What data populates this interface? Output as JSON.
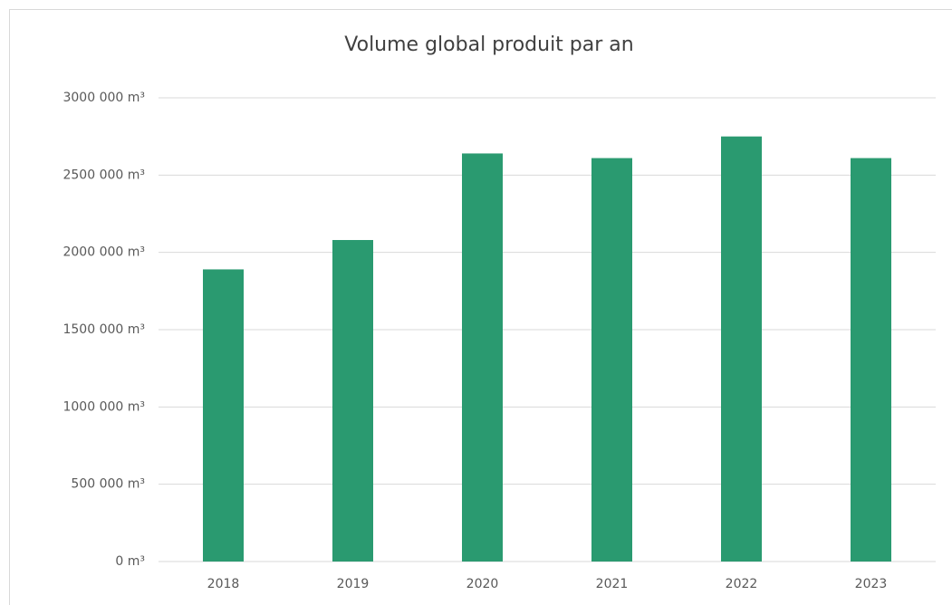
{
  "chart_data": {
    "type": "bar",
    "title": "Volume global produit par an",
    "categories": [
      "2018",
      "2019",
      "2020",
      "2021",
      "2022",
      "2023"
    ],
    "values": [
      1890000,
      2080000,
      2640000,
      2610000,
      2750000,
      2610000
    ],
    "color": "#2a9a70",
    "ylim": [
      0,
      3000000
    ],
    "yticks": [
      {
        "value": 0,
        "label": "0 m³"
      },
      {
        "value": 500000,
        "label": "500 000 m³"
      },
      {
        "value": 1000000,
        "label": "1000 000 m³"
      },
      {
        "value": 1500000,
        "label": "1500 000 m³"
      },
      {
        "value": 2000000,
        "label": "2000 000 m³"
      },
      {
        "value": 2500000,
        "label": "2500 000 m³"
      },
      {
        "value": 3000000,
        "label": "3000 000 m³"
      }
    ],
    "grid": true
  }
}
